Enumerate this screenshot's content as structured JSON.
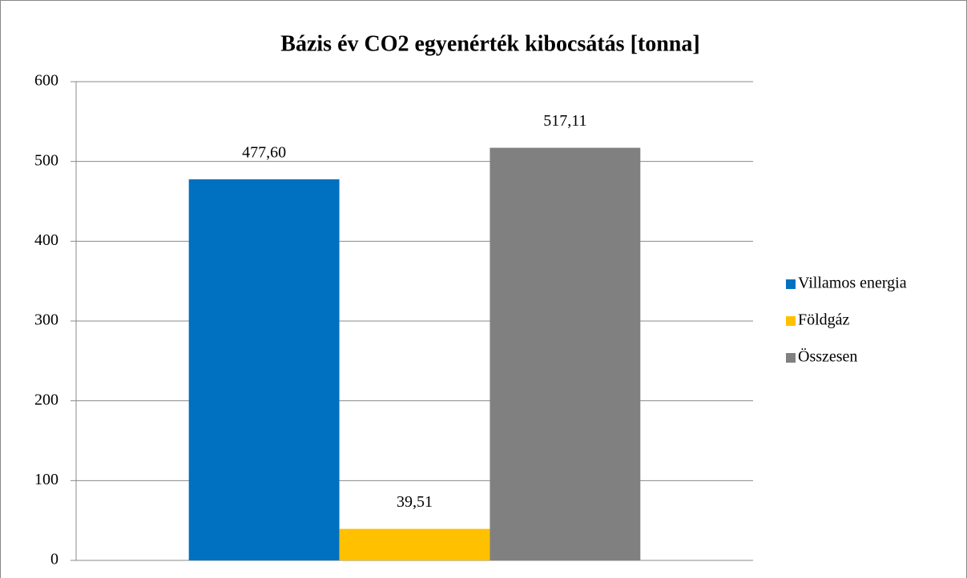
{
  "chart_data": {
    "type": "bar",
    "title": "Bázis év CO2 egyenérték kibocsátás [tonna]",
    "categories": [
      null
    ],
    "series": [
      {
        "name": "Villamos energia",
        "color": "#0070c0",
        "values": [
          477.6
        ],
        "value_labels": [
          "477,60"
        ]
      },
      {
        "name": "Földgáz",
        "color": "#ffc000",
        "values": [
          39.51
        ],
        "value_labels": [
          "39,51"
        ]
      },
      {
        "name": "Összesen",
        "color": "#808080",
        "values": [
          517.11
        ],
        "value_labels": [
          "517,11"
        ]
      }
    ],
    "ylim": [
      0,
      600
    ],
    "yticks": [
      0,
      100,
      200,
      300,
      400,
      500,
      600
    ],
    "grid": true,
    "legend": "right"
  }
}
